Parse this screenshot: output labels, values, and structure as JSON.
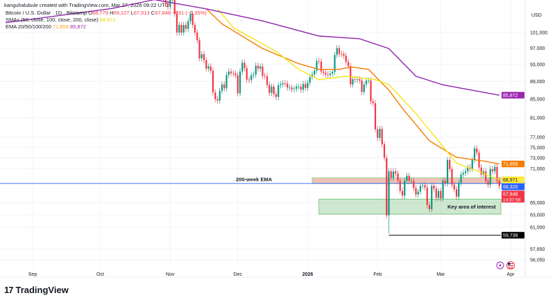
{
  "header": {
    "credit": "kanguhalubale created with TradingView.com, Mar 27, 2026 09:22 UTC",
    "symbol": "Bitcoin / U.S. Dollar · 1D · Bitstamp",
    "open_label": "O",
    "open": "68,779",
    "high_label": "H",
    "high": "69,127",
    "low_label": "L",
    "low": "67,513",
    "close_label": "C",
    "close": "67,848",
    "change": "−931 (−1.35%)",
    "sma_label": "SMAs (50, close, 100, close, 200, close)",
    "sma_value": "68,971",
    "ema_label": "EMA 20/50/100/200",
    "ema_value_1": "71,858",
    "ema_value_2": "85,872"
  },
  "footer": {
    "brand": "TradingView"
  },
  "colors": {
    "up": "#089981",
    "down": "#f23645",
    "ema20": "#f57c00",
    "sma50": "#f5e614",
    "ma200": "#8e24aa",
    "ema200w": "#2962ff",
    "zone": "#a5d6a7",
    "band": "#e8a899"
  },
  "icons": [
    "lightning-icon",
    "us-flag-icon"
  ],
  "chart_data": {
    "type": "candlestick",
    "scale": "log",
    "currency_label": "USD",
    "ylim": [
      55500,
      108500
    ],
    "xlim": [
      "2025-08-20",
      "2026-04-07"
    ],
    "grid": true,
    "x_ticks": [
      {
        "date": "2025-09-01",
        "label": "Sep"
      },
      {
        "date": "2025-10-01",
        "label": "Oct"
      },
      {
        "date": "2025-11-01",
        "label": "Nov"
      },
      {
        "date": "2025-12-01",
        "label": "Dec"
      },
      {
        "date": "2026-01-01",
        "label": "2026",
        "bold": true
      },
      {
        "date": "2026-02-01",
        "label": "Feb"
      },
      {
        "date": "2026-03-01",
        "label": "Mar"
      },
      {
        "date": "2026-04-01",
        "label": "Apr"
      }
    ],
    "y_ticks": [
      101000,
      97000,
      93000,
      89000,
      85000,
      81000,
      77000,
      75000,
      73000,
      71000,
      65000,
      63000,
      61000,
      57650,
      56050
    ],
    "y_tick_labels": [
      "101,000",
      "97,000",
      "93,000",
      "89,000",
      "85,000",
      "81,000",
      "77,000",
      "75,000",
      "73,000",
      "71,000",
      "65,000",
      "63,000",
      "61,000",
      "57,650",
      "56,050"
    ],
    "candles_start": "2025-10-29",
    "closes": [
      110,
      109,
      108,
      110,
      110,
      106,
      101,
      103,
      101,
      103,
      102,
      104,
      106,
      103,
      101,
      99,
      94.5,
      95.5,
      94,
      92,
      92.5,
      91.5,
      86.5,
      85,
      84.7,
      86.8,
      88.3,
      87.4,
      90.5,
      91.3,
      90.9,
      90.8,
      90.4,
      86.3,
      91.3,
      93.4,
      92.1,
      89.4,
      89.3,
      90.4,
      90.6,
      92.7,
      92.0,
      92.5,
      90.3,
      90.2,
      88.2,
      86.4,
      87.8,
      86.1,
      85.5,
      88.1,
      88.3,
      88.6,
      88.5,
      87.6,
      87.6,
      87.2,
      87.3,
      87.8,
      87.8,
      87.1,
      88.4,
      87.5,
      88.7,
      90.0,
      90.6,
      91.5,
      93.8,
      93.7,
      91.3,
      91.0,
      90.6,
      90.5,
      90.8,
      91.2,
      95.3,
      97.0,
      95.6,
      95.5,
      95.1,
      93.6,
      92.6,
      88.3,
      89.5,
      89.4,
      89.5,
      89.2,
      86.6,
      88.3,
      89.2,
      89.2,
      84.5,
      84.1,
      78.6,
      76.9,
      78.7,
      75.6,
      73.0,
      62.9,
      70.5,
      69.3,
      70.5,
      70.1,
      68.8,
      67.0,
      66.2,
      68.8,
      69.7,
      68.8,
      68.8,
      67.5,
      66.4,
      66.9,
      67.9,
      68.0,
      67.6,
      64.6,
      63.9,
      67.9,
      67.4,
      65.8,
      67.0,
      65.7,
      68.8,
      68.3,
      72.6,
      70.9,
      68.1,
      67.3,
      66.0,
      68.4,
      69.9,
      70.2,
      70.5,
      71.2,
      70.9,
      72.6,
      74.8,
      74.0,
      71.2,
      69.9,
      70.5,
      68.7,
      68.1,
      70.9,
      70.5,
      71.3,
      68.8,
      67.848
    ],
    "closes_unit": "thousand USD",
    "series": [
      {
        "name": "EMA 20",
        "color": "#f57c00",
        "points": [
          [
            "2025-11-17",
            107.4
          ],
          [
            "2025-11-24",
            103.3
          ],
          [
            "2025-12-12",
            96.9
          ],
          [
            "2025-12-28",
            93.2
          ],
          [
            "2026-01-06",
            91.8
          ],
          [
            "2026-01-15",
            91.8
          ],
          [
            "2026-01-20",
            92.4
          ],
          [
            "2026-01-28",
            91.8
          ],
          [
            "2026-02-06",
            87.0
          ],
          [
            "2026-02-12",
            83.0
          ],
          [
            "2026-02-24",
            76.3
          ],
          [
            "2026-03-08",
            73.1
          ],
          [
            "2026-03-20",
            72.4
          ],
          [
            "2026-03-27",
            71.858
          ]
        ]
      },
      {
        "name": "SMA 50",
        "color": "#f5e614",
        "points": [
          [
            "2025-11-22",
            107.4
          ],
          [
            "2025-11-29",
            102.3
          ],
          [
            "2025-12-18",
            96.2
          ],
          [
            "2025-12-28",
            91.8
          ],
          [
            "2026-01-06",
            89.4
          ],
          [
            "2026-01-18",
            90.2
          ],
          [
            "2026-01-31",
            89.4
          ],
          [
            "2026-02-06",
            88.3
          ],
          [
            "2026-02-18",
            81.9
          ],
          [
            "2026-03-02",
            75.2
          ],
          [
            "2026-03-08",
            72.0
          ],
          [
            "2026-03-17",
            70.6
          ],
          [
            "2026-03-27",
            68.971
          ]
        ]
      },
      {
        "name": "200",
        "color": "#8e24aa",
        "points": [
          [
            "2025-08-20",
            103.6
          ],
          [
            "2025-10-06",
            107.5
          ],
          [
            "2025-10-25",
            110
          ],
          [
            "2025-11-17",
            107.4
          ],
          [
            "2025-12-12",
            104.1
          ],
          [
            "2026-01-06",
            100.1
          ],
          [
            "2026-01-24",
            99.4
          ],
          [
            "2026-02-06",
            96.9
          ],
          [
            "2026-02-18",
            90.2
          ],
          [
            "2026-03-02",
            88.2
          ],
          [
            "2026-03-27",
            85.872
          ]
        ]
      }
    ],
    "price_labels": [
      {
        "value": 85872,
        "text": "85,872",
        "bg": "#9c27b0",
        "fg": "#ffffff"
      },
      {
        "value": 71858,
        "text": "71,858",
        "bg": "#f57c00",
        "fg": "#ffffff"
      },
      {
        "value": 68971,
        "text": "68,971",
        "bg": "#ffeb3b",
        "fg": "#131722"
      },
      {
        "value": 68320,
        "text": "68,320",
        "bg": "#2962ff",
        "fg": "#ffffff"
      },
      {
        "value": 67848,
        "text": "67,848",
        "sub": "14:37:59",
        "bg": "#f23645",
        "fg": "#ffffff"
      },
      {
        "value": 59739,
        "text": "59,739",
        "bg": "#000000",
        "fg": "#ffffff"
      }
    ],
    "annotations": {
      "ema200w": {
        "value": 68320,
        "label": "200-week EMA"
      },
      "band": {
        "from": 68320,
        "to": 69300,
        "start": "2026-01-03"
      },
      "zone": {
        "from": 63100,
        "to": 65600,
        "start": "2026-01-06",
        "label": "Key area of interest"
      },
      "low_line": {
        "value": 59739,
        "start": "2026-02-06"
      }
    }
  }
}
